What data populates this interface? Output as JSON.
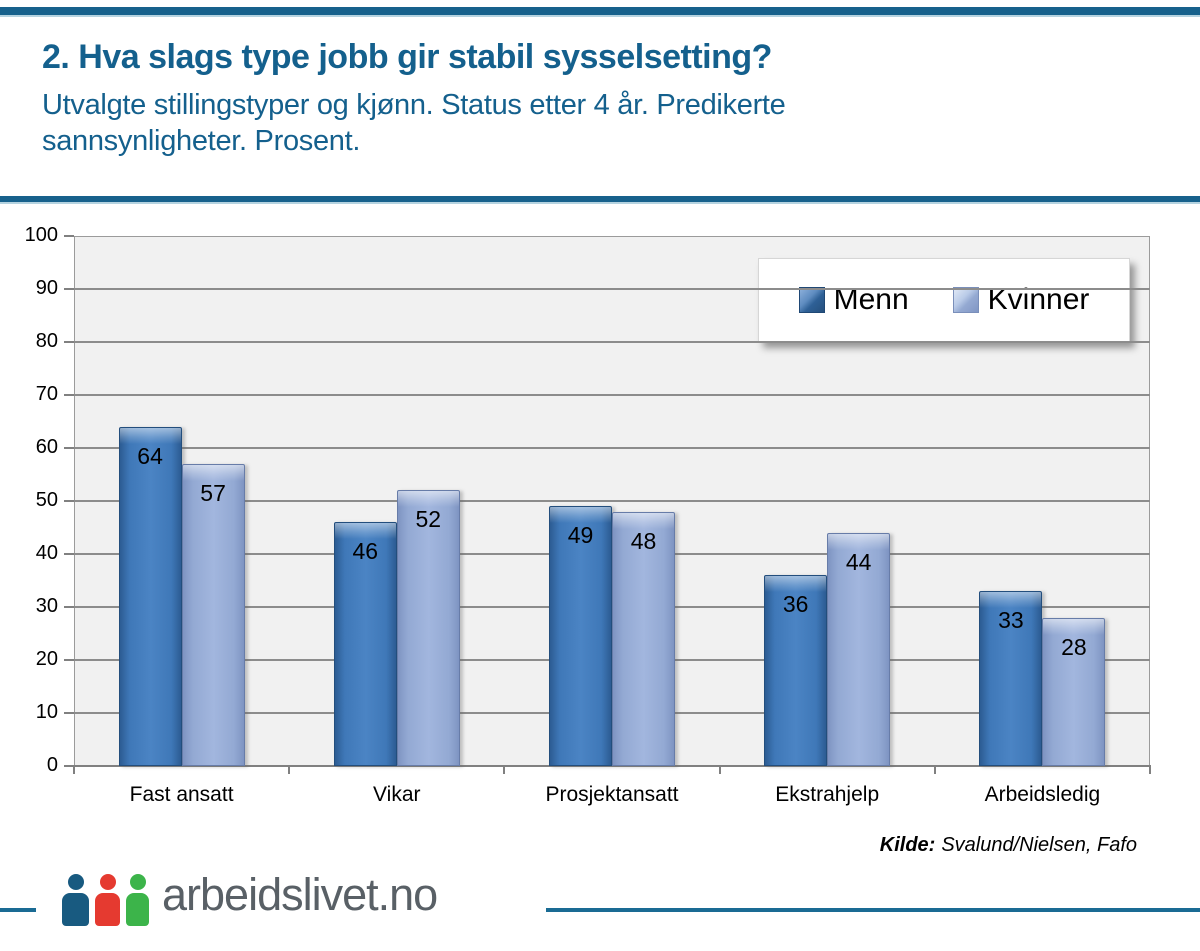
{
  "header": {
    "title": "2. Hva slags type jobb gir stabil sysselsetting?",
    "subtitle": "Utvalgte stillingstyper og kjønn. Status etter 4 år. Predikerte sannsynligheter. Prosent."
  },
  "chart_data": {
    "type": "bar",
    "categories": [
      "Fast ansatt",
      "Vikar",
      "Prosjektansatt",
      "Ekstrahjelp",
      "Arbeidsledig"
    ],
    "series": [
      {
        "name": "Menn",
        "color": "#3F78B8",
        "values": [
          64,
          46,
          49,
          36,
          33
        ]
      },
      {
        "name": "Kvinner",
        "color": "#93A9D3",
        "values": [
          57,
          52,
          48,
          44,
          28
        ]
      }
    ],
    "title": "",
    "xlabel": "",
    "ylabel": "",
    "ylim": [
      0,
      100
    ],
    "ytick_step": 10,
    "grid": true,
    "legend_position": "top-right",
    "plot_background": "#F1F1F1",
    "gridline_color": "#8C8C8C"
  },
  "source": {
    "label": "Kilde:",
    "text": "Svalund/Nielsen, Fafo"
  },
  "footer": {
    "logo_text": "arbeidslivet.no",
    "logo_person_colors": [
      "#185A80",
      "#E53A30",
      "#3CB44A"
    ]
  },
  "colors": {
    "brand_accent": "#17618C",
    "brand_accent_light": "#B5D3E0",
    "title_text": "#14608D",
    "logo_text": "#596066"
  }
}
